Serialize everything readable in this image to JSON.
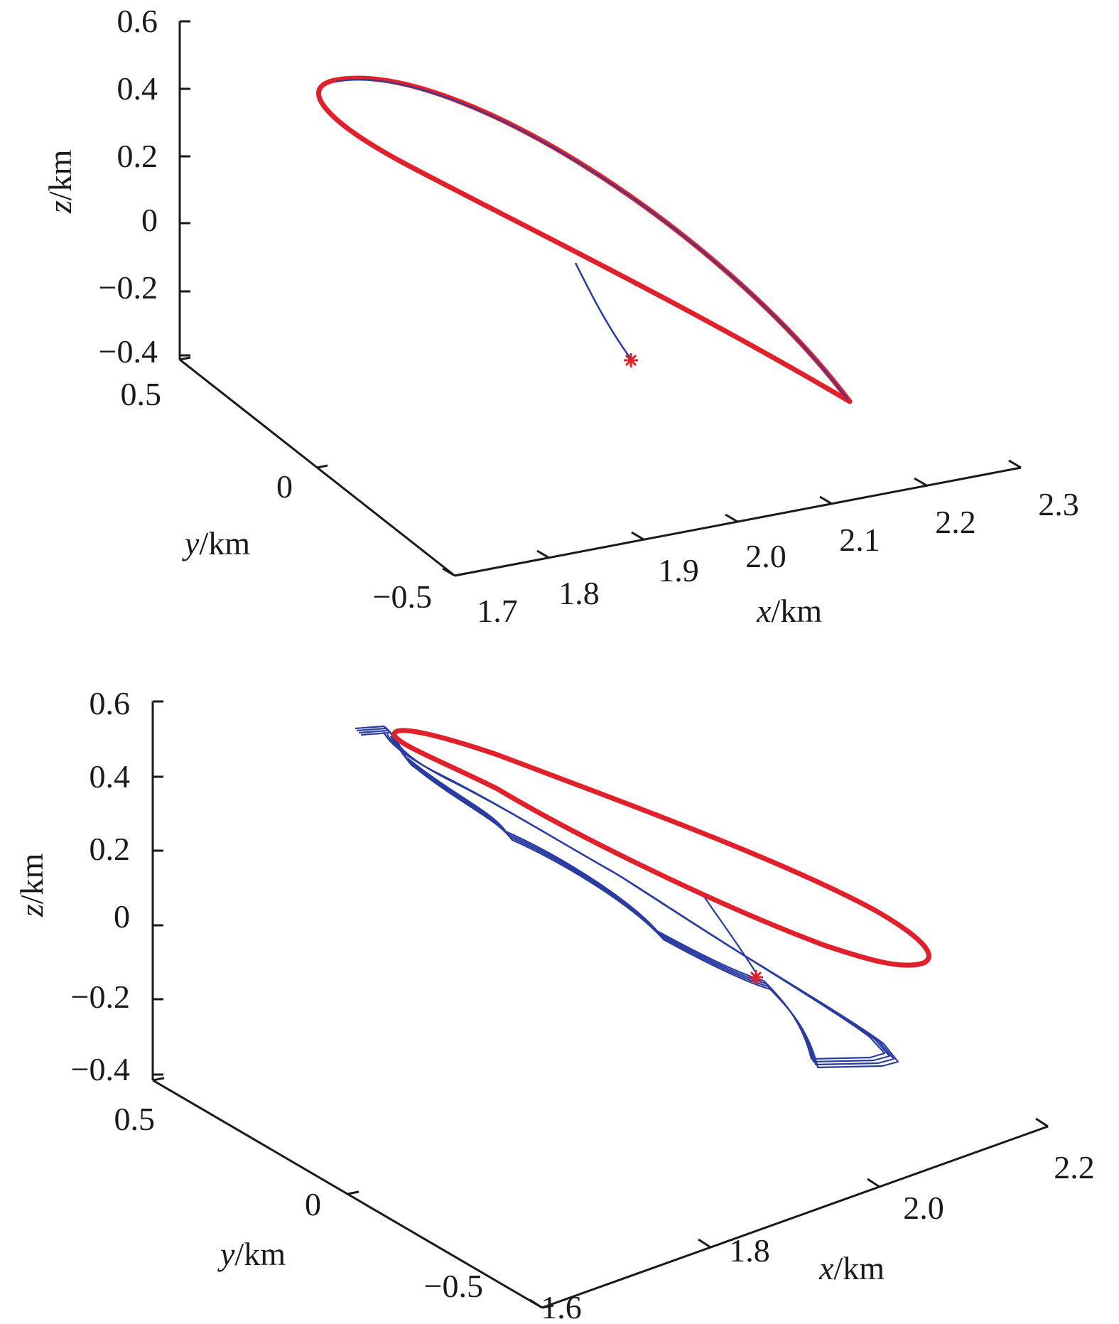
{
  "chart_data": [
    {
      "type": "line3d",
      "title": "",
      "xlabel": "x/km",
      "ylabel": "y/km",
      "zlabel": "z/km",
      "xlabel_var": "x",
      "ylabel_var": "y",
      "zlabel_var": "z",
      "label_unit": "/km",
      "xlim": [
        1.7,
        2.3
      ],
      "ylim": [
        -0.5,
        0.5
      ],
      "zlim": [
        -0.4,
        0.6
      ],
      "xticks": [
        "1.7",
        "1.8",
        "1.9",
        "2.0",
        "2.1",
        "2.2",
        "2.3"
      ],
      "yticks": [
        "0.5",
        "0",
        "−0.5"
      ],
      "zticks": [
        "0.6",
        "0.4",
        "0.2",
        "0",
        "−0.2",
        "−0.4"
      ],
      "series": [
        {
          "kind": "reference-orbit",
          "color": "#e0202a",
          "points": [
            [
              1.72,
              0.35,
              0.42
            ],
            [
              2.1,
              -0.3,
              -0.35
            ]
          ]
        },
        {
          "kind": "controlled-trajectory",
          "color": "#2a3ca0",
          "points": [
            [
              1.88,
              0.0,
              -0.35
            ],
            [
              1.8,
              0.1,
              -0.12
            ]
          ]
        }
      ],
      "markers": [
        {
          "symbol": "*",
          "color": "#e0202a",
          "point": [
            1.88,
            0.0,
            -0.35
          ]
        }
      ]
    },
    {
      "type": "line3d",
      "title": "",
      "xlabel": "x/km",
      "ylabel": "y/km",
      "zlabel": "z/km",
      "xlabel_var": "x",
      "ylabel_var": "y",
      "zlabel_var": "z",
      "label_unit": "/km",
      "xlim": [
        1.6,
        2.2
      ],
      "ylim": [
        -0.5,
        0.5
      ],
      "zlim": [
        -0.4,
        0.6
      ],
      "xticks": [
        "1.6",
        "1.8",
        "2.0",
        "2.2"
      ],
      "yticks": [
        "0.5",
        "0",
        "−0.5"
      ],
      "zticks": [
        "0.6",
        "0.4",
        "0.2",
        "0",
        "−0.2",
        "−0.4"
      ],
      "series": [
        {
          "kind": "reference-orbit",
          "color": "#e0202a",
          "points": [
            [
              1.7,
              0.35,
              0.52
            ],
            [
              2.1,
              -0.3,
              -0.25
            ]
          ]
        },
        {
          "kind": "controlled-trajectory",
          "color": "#2a3ca0",
          "points": [
            [
              1.68,
              0.35,
              0.53
            ],
            [
              2.05,
              -0.3,
              -0.38
            ]
          ]
        }
      ],
      "markers": [
        {
          "symbol": "*",
          "color": "#e0202a",
          "point": [
            1.95,
            0.0,
            -0.14
          ]
        }
      ]
    }
  ]
}
